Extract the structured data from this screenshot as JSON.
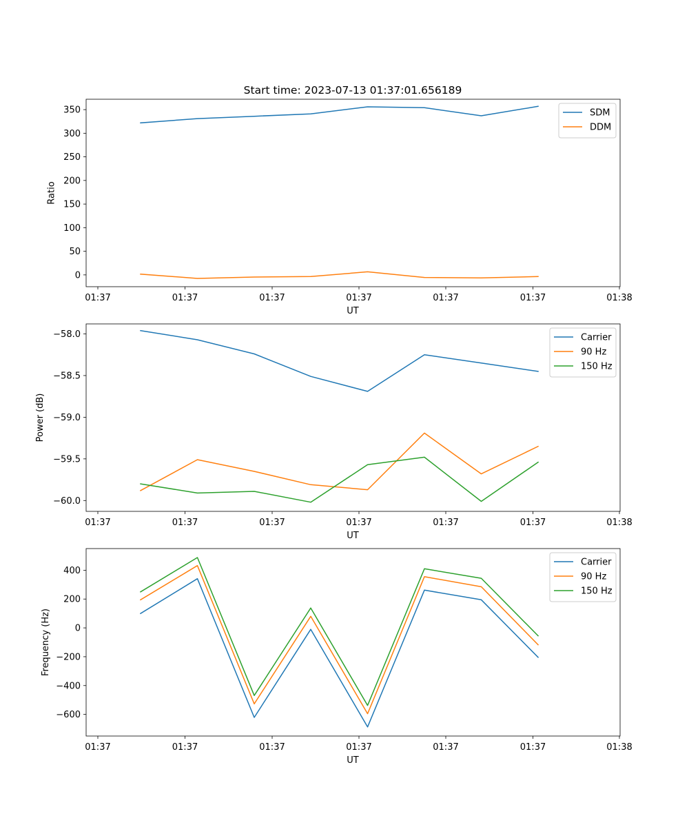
{
  "chart_data": [
    {
      "type": "line",
      "title": "Start time: 2023-07-13 01:37:01.656189",
      "xlabel": "UT",
      "ylabel": "Ratio",
      "x_tick_labels": [
        "01:37",
        "01:37",
        "01:37",
        "01:37",
        "01:37",
        "01:37",
        "01:38"
      ],
      "ylim": [
        -25,
        372
      ],
      "yticks": [
        0,
        50,
        100,
        150,
        200,
        250,
        300,
        350
      ],
      "ytick_labels": [
        "0",
        "50",
        "100",
        "150",
        "200",
        "250",
        "300",
        "350"
      ],
      "legend": "top-right",
      "series": [
        {
          "name": "SDM",
          "color": "#1f77b4",
          "values": [
            322,
            331,
            336,
            341,
            356,
            354,
            337,
            357
          ]
        },
        {
          "name": "DDM",
          "color": "#ff7f0e",
          "values": [
            1.5,
            -7.5,
            -4.5,
            -3.5,
            6.5,
            -5.5,
            -6.5,
            -3.5
          ]
        }
      ]
    },
    {
      "type": "line",
      "title": "",
      "xlabel": "UT",
      "ylabel": "Power (dB)",
      "x_tick_labels": [
        "01:37",
        "01:37",
        "01:37",
        "01:37",
        "01:37",
        "01:37",
        "01:38"
      ],
      "ylim": [
        -60.13,
        -57.88
      ],
      "yticks": [
        -58.0,
        -58.5,
        -59.0,
        -59.5,
        -60.0
      ],
      "ytick_labels": [
        "−58.0",
        "−58.5",
        "−59.0",
        "−59.5",
        "−60.0"
      ],
      "legend": "top-right",
      "series": [
        {
          "name": "Carrier",
          "color": "#1f77b4",
          "values": [
            -57.96,
            -58.07,
            -58.24,
            -58.51,
            -58.69,
            -58.25,
            -58.35,
            -58.45
          ]
        },
        {
          "name": "90 Hz",
          "color": "#ff7f0e",
          "values": [
            -59.88,
            -59.51,
            -59.65,
            -59.81,
            -59.87,
            -59.19,
            -59.68,
            -59.35
          ]
        },
        {
          "name": "150 Hz",
          "color": "#2ca02c",
          "values": [
            -59.8,
            -59.91,
            -59.89,
            -60.02,
            -59.57,
            -59.48,
            -60.01,
            -59.54
          ]
        }
      ]
    },
    {
      "type": "line",
      "title": "",
      "xlabel": "UT",
      "ylabel": "Frequency (Hz)",
      "x_tick_labels": [
        "01:37",
        "01:37",
        "01:37",
        "01:37",
        "01:37",
        "01:37",
        "01:38"
      ],
      "ylim": [
        -750,
        550
      ],
      "yticks": [
        400,
        200,
        0,
        -200,
        -400,
        -600
      ],
      "ytick_labels": [
        "400",
        "200",
        "0",
        "−200",
        "−400",
        "−600"
      ],
      "legend": "top-right",
      "series": [
        {
          "name": "Carrier",
          "color": "#1f77b4",
          "values": [
            100,
            341,
            -621,
            -10,
            -687,
            262,
            195,
            -204
          ]
        },
        {
          "name": "90 Hz",
          "color": "#ff7f0e",
          "values": [
            195,
            432,
            -527,
            80,
            -595,
            355,
            285,
            -117
          ]
        },
        {
          "name": "150 Hz",
          "color": "#2ca02c",
          "values": [
            250,
            488,
            -469,
            138,
            -538,
            410,
            344,
            -55
          ]
        }
      ]
    }
  ]
}
